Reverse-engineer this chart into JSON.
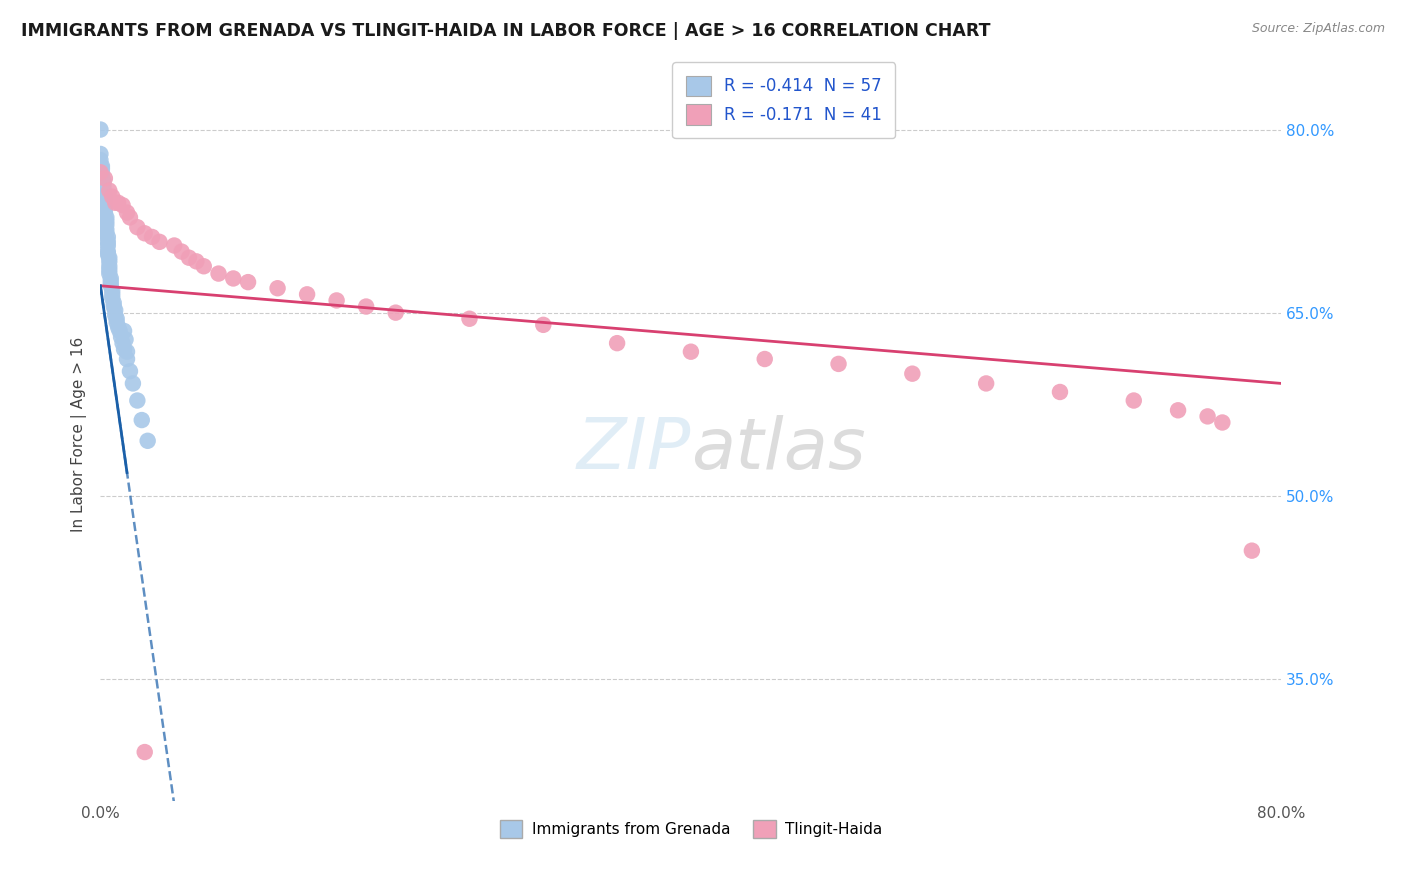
{
  "title": "IMMIGRANTS FROM GRENADA VS TLINGIT-HAIDA IN LABOR FORCE | AGE > 16 CORRELATION CHART",
  "source_text": "Source: ZipAtlas.com",
  "ylabel": "In Labor Force | Age > 16",
  "legend_labels": [
    "Immigrants from Grenada",
    "Tlingit-Haida"
  ],
  "legend_r_blue": "R = -0.414  N = 57",
  "legend_r_pink": "R = -0.171  N = 41",
  "blue_color": "#a8c8e8",
  "pink_color": "#f0a0b8",
  "blue_line_color": "#1a5fa8",
  "pink_line_color": "#d84070",
  "blue_scatter": [
    [
      0.0,
      0.8
    ],
    [
      0.0,
      0.78
    ],
    [
      0.0,
      0.775
    ],
    [
      0.001,
      0.77
    ],
    [
      0.001,
      0.768
    ],
    [
      0.001,
      0.765
    ],
    [
      0.001,
      0.762
    ],
    [
      0.002,
      0.758
    ],
    [
      0.002,
      0.755
    ],
    [
      0.002,
      0.752
    ],
    [
      0.002,
      0.748
    ],
    [
      0.003,
      0.745
    ],
    [
      0.003,
      0.742
    ],
    [
      0.003,
      0.738
    ],
    [
      0.003,
      0.735
    ],
    [
      0.003,
      0.732
    ],
    [
      0.004,
      0.728
    ],
    [
      0.004,
      0.725
    ],
    [
      0.004,
      0.722
    ],
    [
      0.004,
      0.718
    ],
    [
      0.004,
      0.715
    ],
    [
      0.005,
      0.712
    ],
    [
      0.005,
      0.708
    ],
    [
      0.005,
      0.705
    ],
    [
      0.005,
      0.7
    ],
    [
      0.005,
      0.698
    ],
    [
      0.006,
      0.695
    ],
    [
      0.006,
      0.692
    ],
    [
      0.006,
      0.688
    ],
    [
      0.006,
      0.685
    ],
    [
      0.006,
      0.682
    ],
    [
      0.007,
      0.678
    ],
    [
      0.007,
      0.675
    ],
    [
      0.007,
      0.672
    ],
    [
      0.008,
      0.668
    ],
    [
      0.008,
      0.665
    ],
    [
      0.008,
      0.662
    ],
    [
      0.009,
      0.658
    ],
    [
      0.009,
      0.655
    ],
    [
      0.01,
      0.652
    ],
    [
      0.01,
      0.648
    ],
    [
      0.011,
      0.645
    ],
    [
      0.011,
      0.642
    ],
    [
      0.012,
      0.638
    ],
    [
      0.013,
      0.635
    ],
    [
      0.014,
      0.63
    ],
    [
      0.015,
      0.625
    ],
    [
      0.016,
      0.62
    ],
    [
      0.018,
      0.612
    ],
    [
      0.02,
      0.602
    ],
    [
      0.022,
      0.592
    ],
    [
      0.025,
      0.578
    ],
    [
      0.028,
      0.562
    ],
    [
      0.032,
      0.545
    ],
    [
      0.016,
      0.635
    ],
    [
      0.017,
      0.628
    ],
    [
      0.018,
      0.618
    ]
  ],
  "pink_scatter": [
    [
      0.0,
      0.765
    ],
    [
      0.003,
      0.76
    ],
    [
      0.006,
      0.75
    ],
    [
      0.008,
      0.745
    ],
    [
      0.01,
      0.74
    ],
    [
      0.012,
      0.74
    ],
    [
      0.015,
      0.738
    ],
    [
      0.018,
      0.732
    ],
    [
      0.02,
      0.728
    ],
    [
      0.025,
      0.72
    ],
    [
      0.03,
      0.715
    ],
    [
      0.035,
      0.712
    ],
    [
      0.04,
      0.708
    ],
    [
      0.05,
      0.705
    ],
    [
      0.055,
      0.7
    ],
    [
      0.06,
      0.695
    ],
    [
      0.065,
      0.692
    ],
    [
      0.07,
      0.688
    ],
    [
      0.08,
      0.682
    ],
    [
      0.09,
      0.678
    ],
    [
      0.1,
      0.675
    ],
    [
      0.12,
      0.67
    ],
    [
      0.14,
      0.665
    ],
    [
      0.16,
      0.66
    ],
    [
      0.18,
      0.655
    ],
    [
      0.2,
      0.65
    ],
    [
      0.25,
      0.645
    ],
    [
      0.3,
      0.64
    ],
    [
      0.35,
      0.625
    ],
    [
      0.4,
      0.618
    ],
    [
      0.45,
      0.612
    ],
    [
      0.5,
      0.608
    ],
    [
      0.55,
      0.6
    ],
    [
      0.6,
      0.592
    ],
    [
      0.65,
      0.585
    ],
    [
      0.7,
      0.578
    ],
    [
      0.73,
      0.57
    ],
    [
      0.75,
      0.565
    ],
    [
      0.76,
      0.56
    ],
    [
      0.78,
      0.455
    ],
    [
      0.03,
      0.29
    ]
  ],
  "xlim": [
    0.0,
    0.8
  ],
  "ylim": [
    0.25,
    0.85
  ],
  "ytick_positions": [
    0.35,
    0.5,
    0.65,
    0.8
  ],
  "xtick_positions": [
    0.0,
    0.8
  ],
  "watermark_text": "ZIPatlas",
  "background_color": "#ffffff"
}
